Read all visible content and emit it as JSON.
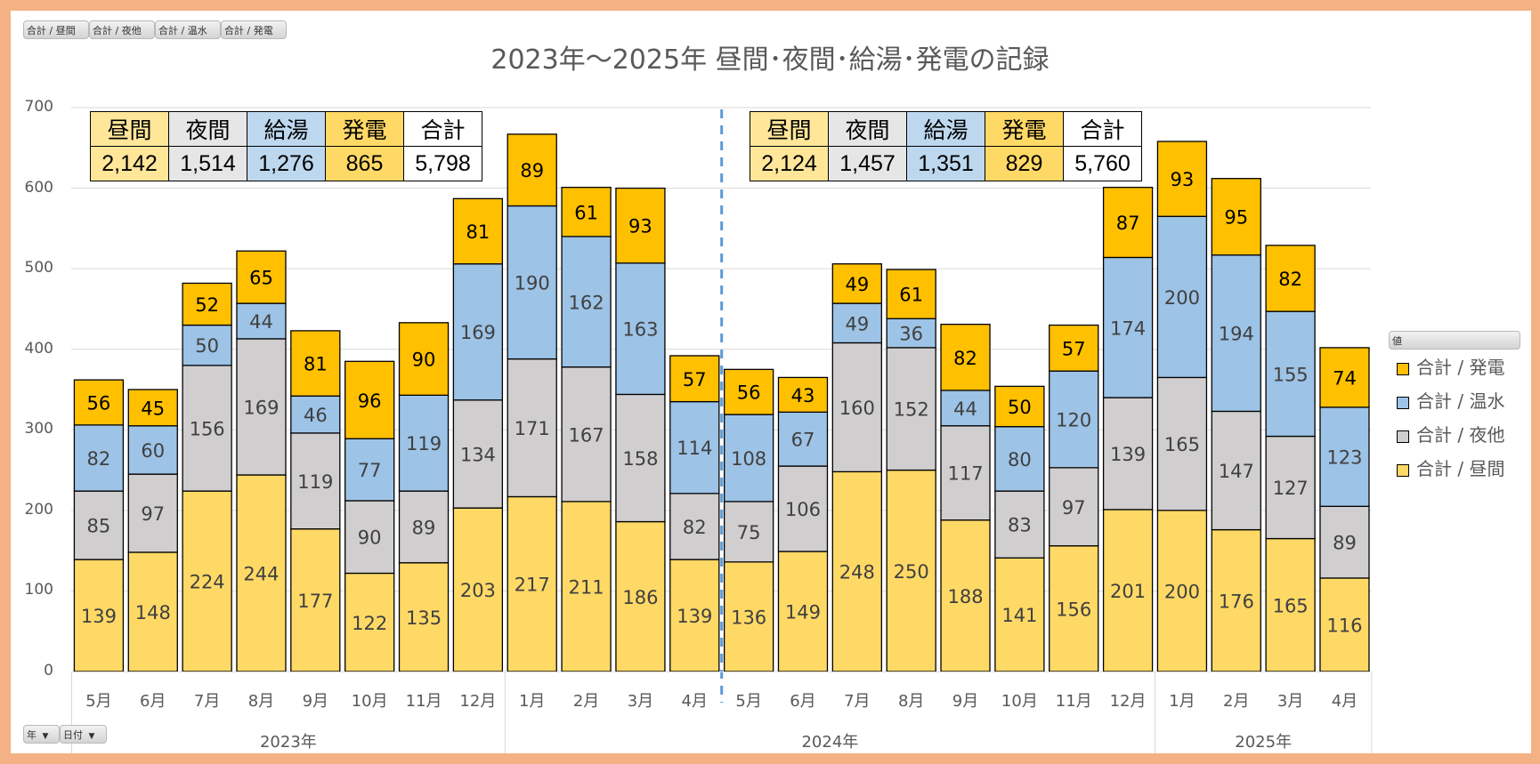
{
  "field_buttons": [
    "合計 / 昼間",
    "合計 / 夜他",
    "合計 / 温水",
    "合計 / 発電"
  ],
  "axis_buttons": [
    {
      "label": "年",
      "icon": "dropdown-arrow-icon"
    },
    {
      "label": "日付",
      "icon": "dropdown-arrow-icon"
    }
  ],
  "arrow_glyph": "▼",
  "legend": {
    "header": "値",
    "items": [
      {
        "label": "合計 / 発電",
        "color": "#ffc000"
      },
      {
        "label": "合計 / 温水",
        "color": "#9dc3e6"
      },
      {
        "label": "合計 / 夜他",
        "color": "#d0cece"
      },
      {
        "label": "合計 / 昼間",
        "color": "#ffd966"
      }
    ]
  },
  "summary_tables": [
    {
      "headers": [
        "昼間",
        "夜間",
        "給湯",
        "発電",
        "合計"
      ],
      "values": [
        "2,142",
        "1,514",
        "1,276",
        "865",
        "5,798"
      ]
    },
    {
      "headers": [
        "昼間",
        "夜間",
        "給湯",
        "発電",
        "合計"
      ],
      "values": [
        "2,124",
        "1,457",
        "1,351",
        "829",
        "5,760"
      ]
    }
  ],
  "table_colors": [
    "#ffe699",
    "#e7e6e6",
    "#bdd7ee",
    "#ffd966",
    "#ffffff"
  ],
  "chart_data": {
    "type": "bar",
    "stacked": true,
    "title": "2023年～2025年  昼間･夜間･給湯･発電の記録",
    "xlabel": "",
    "ylabel": "",
    "ylim": [
      0,
      700
    ],
    "yticks": [
      0,
      100,
      200,
      300,
      400,
      500,
      600,
      700
    ],
    "grid": true,
    "legend_position": "right",
    "categories": [
      "5月",
      "6月",
      "7月",
      "8月",
      "9月",
      "10月",
      "11月",
      "12月",
      "1月",
      "2月",
      "3月",
      "4月",
      "5月",
      "6月",
      "7月",
      "8月",
      "9月",
      "10月",
      "11月",
      "12月",
      "1月",
      "2月",
      "3月",
      "4月"
    ],
    "year_groups": [
      {
        "label": "2023年",
        "count": 8
      },
      {
        "label": "2024年",
        "count": 12
      },
      {
        "label": "2025年",
        "count": 4
      }
    ],
    "divider_after_index": 11,
    "series": [
      {
        "name": "合計 / 昼間",
        "color": "#ffd966",
        "values": [
          139,
          148,
          224,
          244,
          177,
          122,
          135,
          203,
          217,
          211,
          186,
          139,
          136,
          149,
          248,
          250,
          188,
          141,
          156,
          201,
          200,
          176,
          165,
          116
        ]
      },
      {
        "name": "合計 / 夜他",
        "color": "#d0cece",
        "values": [
          85,
          97,
          156,
          169,
          119,
          90,
          89,
          134,
          171,
          167,
          158,
          82,
          75,
          106,
          160,
          152,
          117,
          83,
          97,
          139,
          165,
          147,
          127,
          89
        ]
      },
      {
        "name": "合計 / 温水",
        "color": "#9dc3e6",
        "values": [
          82,
          60,
          50,
          44,
          46,
          77,
          119,
          169,
          190,
          162,
          163,
          114,
          108,
          67,
          49,
          36,
          44,
          80,
          120,
          174,
          200,
          194,
          155,
          123
        ]
      },
      {
        "name": "合計 / 発電",
        "color": "#ffc000",
        "values": [
          56,
          45,
          52,
          65,
          81,
          96,
          90,
          81,
          89,
          61,
          93,
          57,
          56,
          43,
          49,
          61,
          82,
          50,
          57,
          87,
          93,
          95,
          82,
          74
        ]
      }
    ]
  }
}
